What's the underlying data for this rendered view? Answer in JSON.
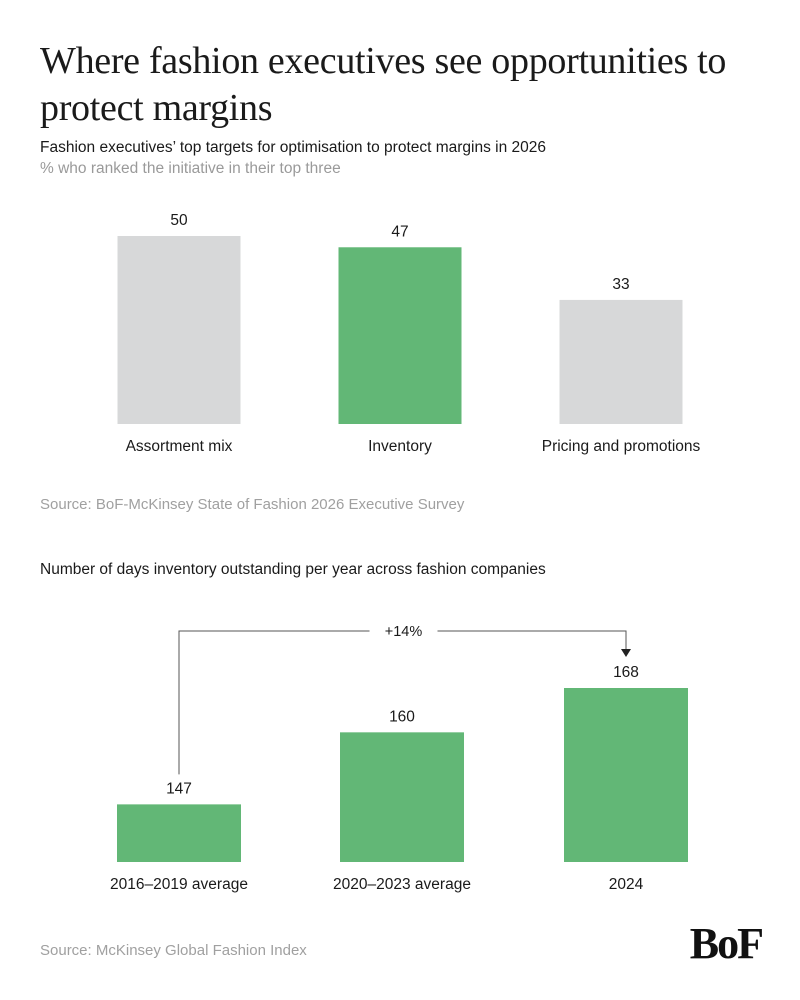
{
  "header": {
    "title": "Where fashion executives see opportunities to protect margins"
  },
  "chart_data": [
    {
      "type": "bar",
      "title": "Fashion executives’ top targets for optimisation to protect margins in 2026",
      "subtitle": "% who ranked the initiative in their top three",
      "categories": [
        "Assortment mix",
        "Inventory",
        "Pricing and promotions"
      ],
      "values": [
        50,
        47,
        33
      ],
      "highlight": [
        false,
        true,
        false
      ],
      "ylim": [
        0,
        50
      ],
      "xlabel": "",
      "ylabel": "",
      "source": "Source: BoF-McKinsey State of Fashion 2026 Executive Survey"
    },
    {
      "type": "bar",
      "title": "Number of days inventory outstanding per year across fashion companies",
      "categories": [
        "2016–2019 average",
        "2020–2023 average",
        "2024"
      ],
      "values": [
        147,
        160,
        168
      ],
      "ylim": [
        136.6,
        168
      ],
      "annotation": "+14%",
      "xlabel": "",
      "ylabel": "",
      "source": "Source: McKinsey Global Fashion Index"
    }
  ],
  "colors": {
    "accent": "#62b776",
    "neutral": "#d7d8d9",
    "text": "#1a1a1a",
    "muted": "#a0a0a0",
    "arrow": "#555555"
  },
  "brand": {
    "logo_text": "BoF"
  }
}
